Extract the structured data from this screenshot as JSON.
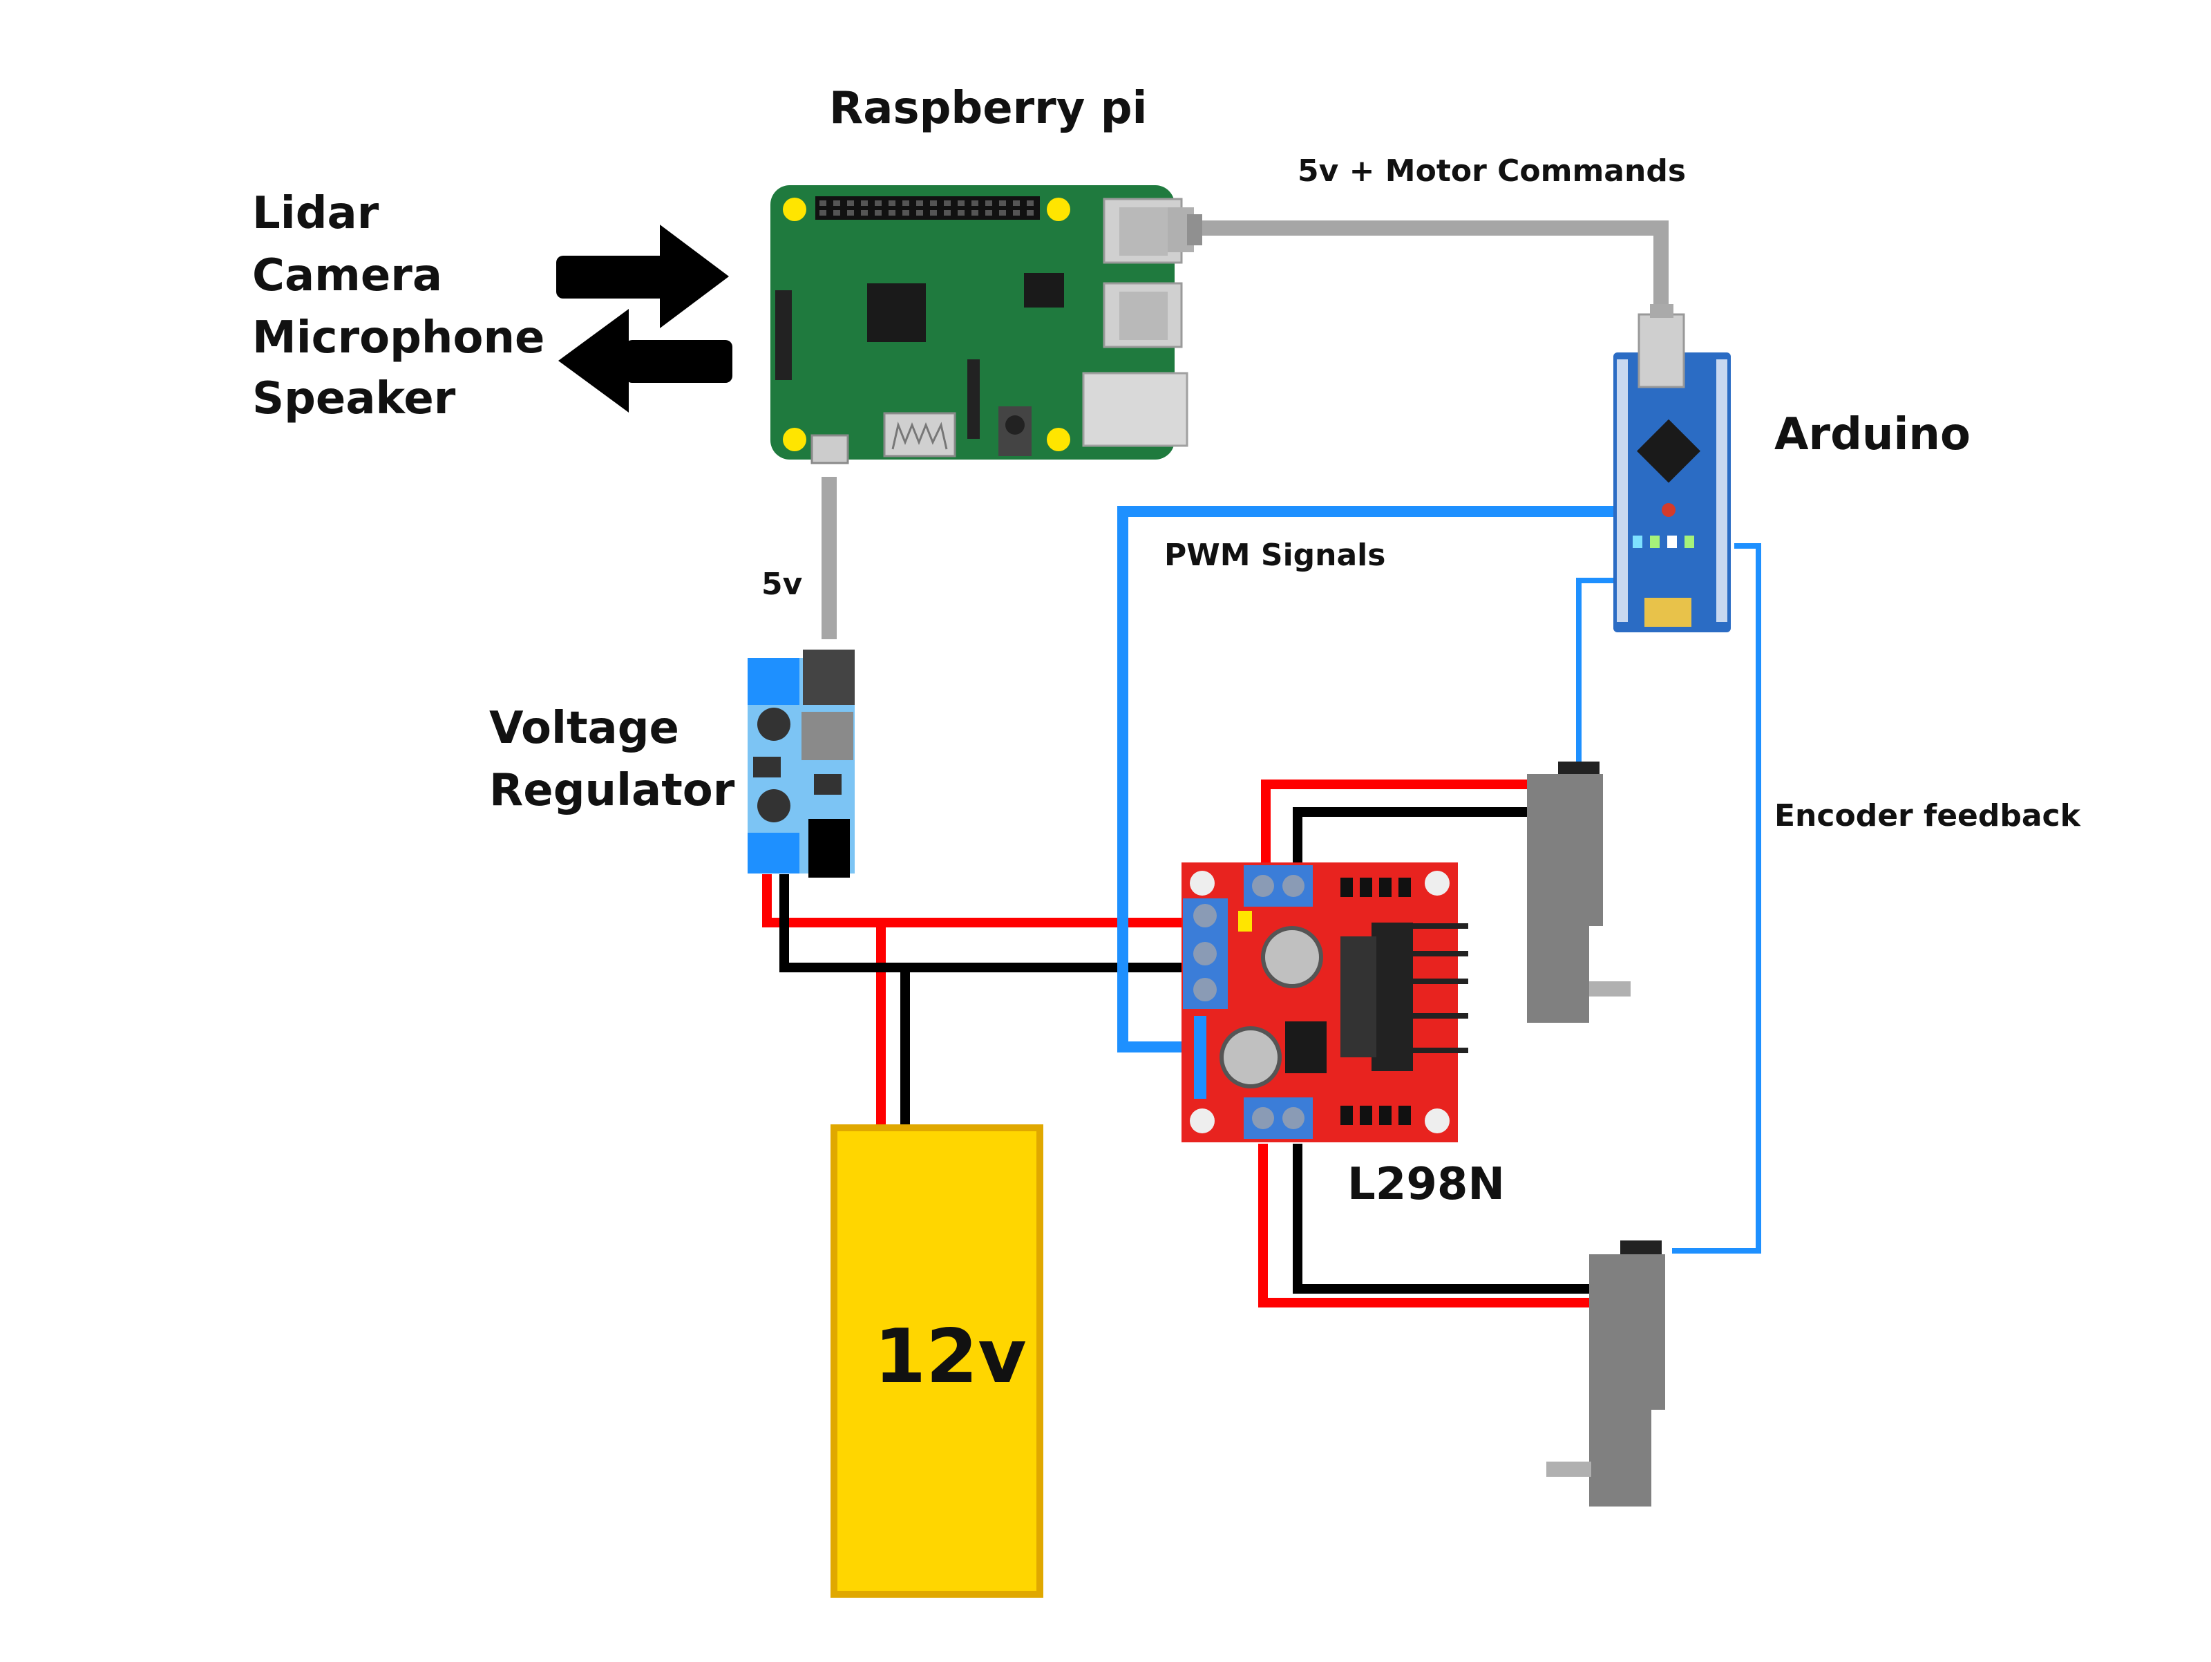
{
  "diagram": {
    "labels": {
      "raspberry_pi": "Raspberry pi",
      "arduino": "Arduino",
      "voltage_regulator_line1": "Voltage",
      "voltage_regulator_line2": "Regulator",
      "motor_driver": "L298N",
      "battery": "12v"
    },
    "sensors": [
      "Lidar",
      "Camera",
      "Microphone",
      "Speaker"
    ],
    "connections": {
      "pi_to_arduino": "5v +  Motor Commands",
      "regulator_to_pi": "5v",
      "arduino_to_driver": "PWM Signals",
      "encoder": "Encoder feedback"
    },
    "colors": {
      "pi_board": "#1f7a3e",
      "arduino_board": "#2b6cc4",
      "driver_board": "#e8231f",
      "regulator": "#7cc4f4",
      "battery": "#ffd600",
      "battery_border": "#e0a800",
      "motor": "#808080",
      "wire_red": "#ff0000",
      "wire_black": "#000000",
      "wire_blue": "#1e90ff",
      "cable_gray": "#a6a6a6"
    }
  }
}
